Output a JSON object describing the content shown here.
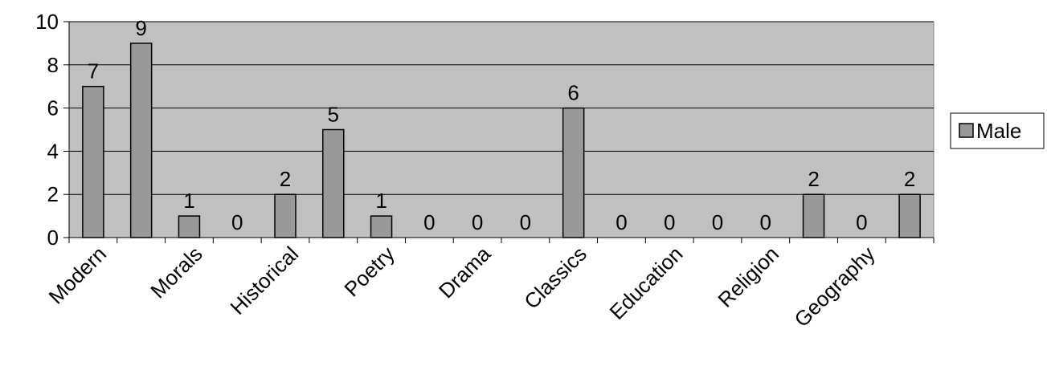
{
  "chart_data": {
    "type": "bar",
    "title": "",
    "xlabel": "",
    "ylabel": "",
    "ylim": [
      0,
      10
    ],
    "yticks": [
      0,
      2,
      4,
      6,
      8,
      10
    ],
    "grid": true,
    "legend_position": "right",
    "colors": {
      "plot_background": "#c0c0c0",
      "bar_fill": "#999999",
      "bar_stroke": "#000000",
      "gridline": "#000000"
    },
    "categories": [
      "Modern",
      "",
      "Morals",
      "",
      "Historical",
      "",
      "Poetry",
      "",
      "Drama",
      "",
      "Classics",
      "",
      "Education",
      "",
      "Religion",
      "",
      "Geography",
      ""
    ],
    "series": [
      {
        "name": "Male",
        "values": [
          7,
          9,
          1,
          0,
          2,
          5,
          1,
          0,
          0,
          0,
          6,
          0,
          0,
          0,
          0,
          2,
          0,
          2
        ]
      }
    ]
  }
}
